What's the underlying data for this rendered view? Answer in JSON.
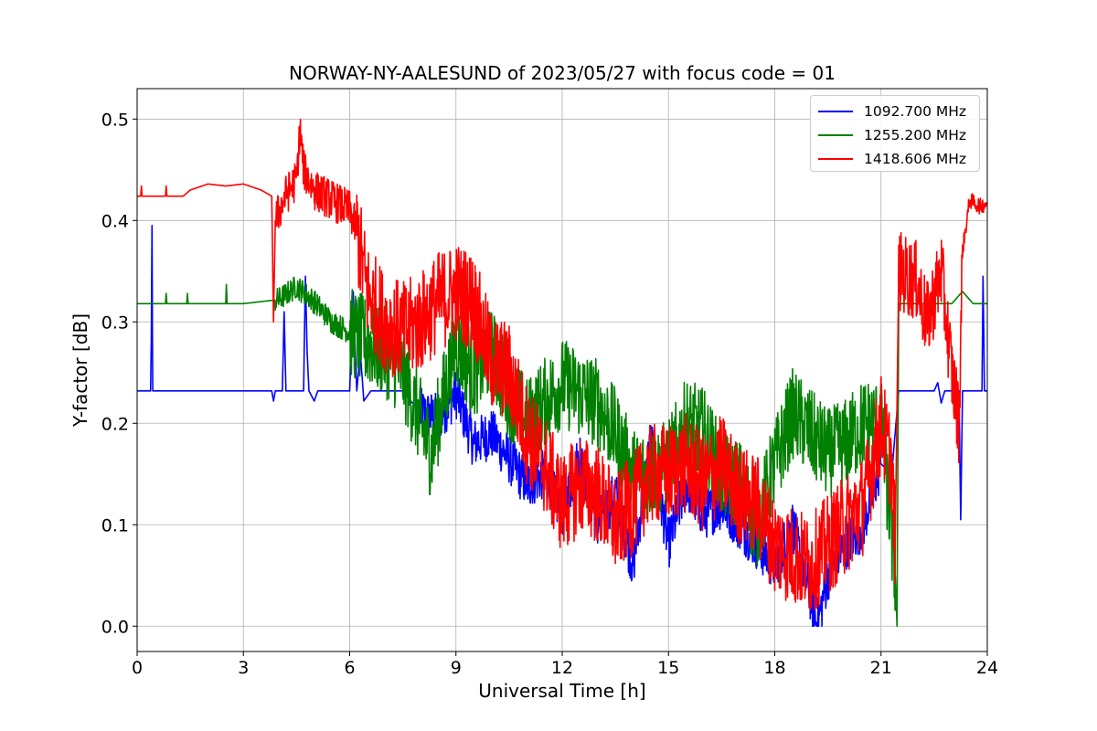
{
  "chart_data": {
    "type": "line",
    "title": "NORWAY-NY-AALESUND of 2023/05/27 with focus code = 01",
    "xlabel": "Universal Time [h]",
    "ylabel": "Y-factor [dB]",
    "xlim": [
      0,
      24
    ],
    "ylim": [
      -0.025,
      0.53
    ],
    "xticks": [
      0,
      3,
      6,
      9,
      12,
      15,
      18,
      21,
      24
    ],
    "yticks": [
      0.0,
      0.1,
      0.2,
      0.3,
      0.4,
      0.5
    ],
    "ytick_labels": [
      "0.0",
      "0.1",
      "0.2",
      "0.3",
      "0.4",
      "0.5"
    ],
    "grid": true,
    "legend_position": "top-right",
    "series": [
      {
        "name": "1092.700 MHz",
        "color": "#0000ff",
        "points": [
          [
            0,
            0.232
          ],
          [
            0.38,
            0.232
          ],
          [
            0.4,
            0.28
          ],
          [
            0.42,
            0.395
          ],
          [
            0.44,
            0.232
          ],
          [
            3.8,
            0.232
          ],
          [
            3.85,
            0.222
          ],
          [
            3.9,
            0.232
          ],
          [
            4.1,
            0.232
          ],
          [
            4.15,
            0.31
          ],
          [
            4.2,
            0.232
          ],
          [
            4.7,
            0.232
          ],
          [
            4.75,
            0.345
          ],
          [
            4.8,
            0.27
          ],
          [
            4.85,
            0.232
          ],
          [
            5.0,
            0.222
          ],
          [
            5.1,
            0.232
          ],
          [
            6.0,
            0.232
          ],
          [
            6.1,
            0.33
          ],
          [
            6.2,
            0.232
          ],
          [
            6.3,
            0.27
          ],
          [
            6.4,
            0.222
          ],
          [
            6.6,
            0.232
          ],
          [
            7.5,
            0.232
          ],
          [
            8.0,
            0.21
          ],
          [
            8.5,
            0.205
          ],
          [
            9.0,
            0.23
          ],
          [
            9.5,
            0.18
          ],
          [
            10.0,
            0.19
          ],
          [
            10.5,
            0.165
          ],
          [
            11.0,
            0.14
          ],
          [
            11.5,
            0.15
          ],
          [
            12.0,
            0.11
          ],
          [
            12.5,
            0.17
          ],
          [
            13.0,
            0.1
          ],
          [
            13.5,
            0.13
          ],
          [
            14.0,
            0.06
          ],
          [
            14.5,
            0.18
          ],
          [
            15.0,
            0.08
          ],
          [
            15.5,
            0.14
          ],
          [
            16.0,
            0.11
          ],
          [
            16.5,
            0.12
          ],
          [
            17.0,
            0.1
          ],
          [
            17.5,
            0.08
          ],
          [
            18.0,
            0.06
          ],
          [
            18.5,
            0.1
          ],
          [
            19.0,
            0.03
          ],
          [
            19.2,
            0.0
          ],
          [
            19.5,
            0.05
          ],
          [
            20.0,
            0.08
          ],
          [
            20.5,
            0.1
          ],
          [
            21.0,
            0.16
          ],
          [
            21.3,
            0.15
          ],
          [
            21.5,
            0.232
          ],
          [
            22.5,
            0.232
          ],
          [
            22.6,
            0.24
          ],
          [
            22.7,
            0.22
          ],
          [
            22.8,
            0.232
          ],
          [
            23.2,
            0.232
          ],
          [
            23.25,
            0.105
          ],
          [
            23.3,
            0.232
          ],
          [
            23.85,
            0.232
          ],
          [
            23.88,
            0.345
          ],
          [
            23.92,
            0.232
          ],
          [
            24,
            0.232
          ]
        ],
        "noise": [
          [
            8.0,
            21.0,
            0.025
          ]
        ]
      },
      {
        "name": "1255.200 MHz",
        "color": "#008000",
        "points": [
          [
            0,
            0.318
          ],
          [
            0.8,
            0.318
          ],
          [
            0.82,
            0.328
          ],
          [
            0.84,
            0.318
          ],
          [
            1.4,
            0.318
          ],
          [
            1.42,
            0.328
          ],
          [
            1.44,
            0.318
          ],
          [
            2.5,
            0.318
          ],
          [
            2.52,
            0.337
          ],
          [
            2.54,
            0.318
          ],
          [
            3.0,
            0.318
          ],
          [
            4.0,
            0.322
          ],
          [
            4.5,
            0.335
          ],
          [
            5.0,
            0.32
          ],
          [
            5.5,
            0.3
          ],
          [
            6.0,
            0.29
          ],
          [
            6.5,
            0.28
          ],
          [
            7.0,
            0.27
          ],
          [
            7.5,
            0.25
          ],
          [
            8.0,
            0.2
          ],
          [
            8.3,
            0.17
          ],
          [
            8.6,
            0.22
          ],
          [
            9.0,
            0.28
          ],
          [
            9.5,
            0.25
          ],
          [
            10.0,
            0.27
          ],
          [
            10.5,
            0.23
          ],
          [
            11.0,
            0.2
          ],
          [
            11.5,
            0.22
          ],
          [
            12.0,
            0.24
          ],
          [
            12.5,
            0.23
          ],
          [
            13.0,
            0.22
          ],
          [
            13.5,
            0.19
          ],
          [
            14.0,
            0.15
          ],
          [
            14.5,
            0.15
          ],
          [
            15.0,
            0.16
          ],
          [
            15.5,
            0.2
          ],
          [
            16.0,
            0.19
          ],
          [
            16.5,
            0.15
          ],
          [
            17.0,
            0.14
          ],
          [
            17.5,
            0.1
          ],
          [
            18.0,
            0.16
          ],
          [
            18.5,
            0.21
          ],
          [
            19.0,
            0.19
          ],
          [
            19.5,
            0.17
          ],
          [
            20.0,
            0.18
          ],
          [
            20.5,
            0.2
          ],
          [
            21.0,
            0.2
          ],
          [
            21.4,
            0.05
          ],
          [
            21.45,
            0.0
          ],
          [
            21.5,
            0.318
          ],
          [
            23.0,
            0.318
          ],
          [
            23.3,
            0.33
          ],
          [
            23.6,
            0.318
          ],
          [
            24,
            0.318
          ]
        ],
        "noise": [
          [
            3.9,
            6.0,
            0.012
          ],
          [
            6.0,
            21.4,
            0.045
          ]
        ]
      },
      {
        "name": "1418.606 MHz",
        "color": "#ff0000",
        "points": [
          [
            0,
            0.424
          ],
          [
            0.1,
            0.424
          ],
          [
            0.12,
            0.434
          ],
          [
            0.14,
            0.424
          ],
          [
            0.8,
            0.424
          ],
          [
            0.82,
            0.434
          ],
          [
            0.84,
            0.424
          ],
          [
            1.3,
            0.424
          ],
          [
            1.5,
            0.43
          ],
          [
            2.0,
            0.436
          ],
          [
            2.5,
            0.434
          ],
          [
            3.0,
            0.436
          ],
          [
            3.5,
            0.43
          ],
          [
            3.8,
            0.424
          ],
          [
            3.85,
            0.3
          ],
          [
            3.9,
            0.4
          ],
          [
            4.2,
            0.425
          ],
          [
            4.5,
            0.44
          ],
          [
            4.6,
            0.49
          ],
          [
            4.7,
            0.45
          ],
          [
            5.0,
            0.43
          ],
          [
            5.5,
            0.42
          ],
          [
            6.0,
            0.41
          ],
          [
            6.2,
            0.39
          ],
          [
            6.5,
            0.33
          ],
          [
            7.0,
            0.3
          ],
          [
            7.5,
            0.29
          ],
          [
            8.0,
            0.3
          ],
          [
            8.5,
            0.32
          ],
          [
            9.0,
            0.33
          ],
          [
            9.5,
            0.32
          ],
          [
            10.0,
            0.26
          ],
          [
            10.5,
            0.25
          ],
          [
            11.0,
            0.19
          ],
          [
            11.5,
            0.16
          ],
          [
            12.0,
            0.12
          ],
          [
            12.5,
            0.14
          ],
          [
            13.0,
            0.13
          ],
          [
            13.5,
            0.1
          ],
          [
            14.0,
            0.12
          ],
          [
            14.5,
            0.15
          ],
          [
            15.0,
            0.15
          ],
          [
            15.5,
            0.16
          ],
          [
            16.0,
            0.14
          ],
          [
            16.5,
            0.16
          ],
          [
            17.0,
            0.13
          ],
          [
            17.5,
            0.12
          ],
          [
            18.0,
            0.08
          ],
          [
            18.5,
            0.07
          ],
          [
            19.0,
            0.06
          ],
          [
            19.5,
            0.08
          ],
          [
            20.0,
            0.1
          ],
          [
            20.5,
            0.12
          ],
          [
            21.0,
            0.2
          ],
          [
            21.3,
            0.16
          ],
          [
            21.4,
            0.08
          ],
          [
            21.5,
            0.35
          ],
          [
            22.0,
            0.34
          ],
          [
            22.3,
            0.3
          ],
          [
            22.7,
            0.35
          ],
          [
            23.0,
            0.25
          ],
          [
            23.2,
            0.2
          ],
          [
            23.3,
            0.37
          ],
          [
            23.5,
            0.42
          ],
          [
            23.8,
            0.414
          ],
          [
            24,
            0.418
          ]
        ],
        "noise": [
          [
            3.9,
            6.2,
            0.02
          ],
          [
            6.2,
            21.4,
            0.05
          ],
          [
            21.5,
            23.3,
            0.04
          ],
          [
            23.3,
            24.0,
            0.008
          ]
        ]
      }
    ]
  }
}
